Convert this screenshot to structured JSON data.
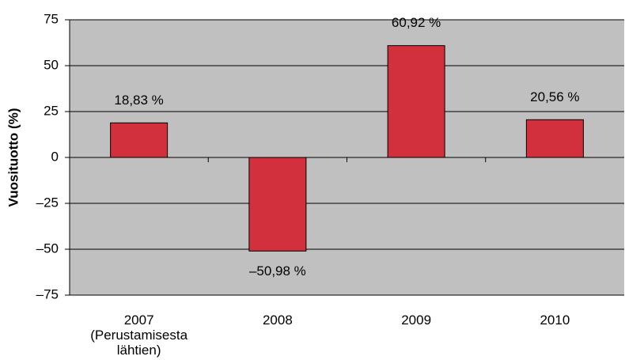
{
  "chart_data": {
    "type": "bar",
    "ylabel": "Vuosituotto (%)",
    "categories": [
      "2007\n(Perustamisesta\nlähtien)",
      "2008",
      "2009",
      "2010"
    ],
    "values": [
      18.83,
      -50.98,
      60.92,
      20.56
    ],
    "value_labels": [
      "18,83 %",
      "–50,98 %",
      "60,92 %",
      "20,56 %"
    ],
    "color": "#d2303c",
    "ylim": [
      -75,
      75
    ],
    "yticks": [
      {
        "value": -75,
        "label": "–75"
      },
      {
        "value": -50,
        "label": "–50"
      },
      {
        "value": -25,
        "label": "–25"
      },
      0,
      25,
      50,
      75
    ],
    "grid": true
  }
}
